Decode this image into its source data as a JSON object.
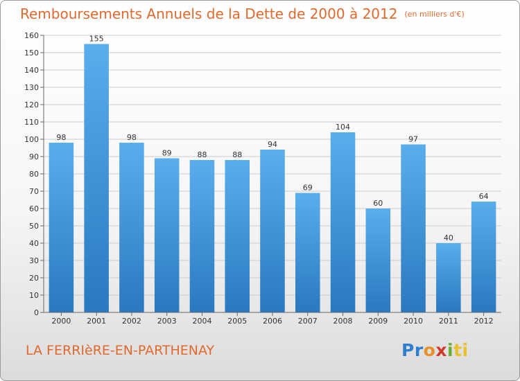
{
  "chart_data": {
    "type": "bar",
    "title": "Remboursements Annuels de la Dette de 2000 à 2012",
    "unit_note": "(en milliers d'€)",
    "categories": [
      "2000",
      "2001",
      "2002",
      "2003",
      "2004",
      "2005",
      "2006",
      "2007",
      "2008",
      "2009",
      "2010",
      "2011",
      "2012"
    ],
    "values": [
      98,
      155,
      98,
      89,
      88,
      88,
      94,
      69,
      104,
      60,
      97,
      40,
      64
    ],
    "ylim": [
      0,
      160
    ],
    "yticks": [
      0,
      10,
      20,
      30,
      40,
      50,
      60,
      70,
      80,
      90,
      100,
      110,
      120,
      130,
      140,
      150,
      160
    ],
    "grid": true,
    "bar_color_top": "#5aaeec",
    "bar_color_bottom": "#2a78c0"
  },
  "footer": {
    "commune": "LA FERRIèRE-EN-PARTHENAY",
    "logo_parts": [
      "Pr",
      "o",
      "x",
      "i",
      "ti"
    ]
  },
  "colors": {
    "title": "#e06a2e",
    "grid": "#cccccc"
  }
}
